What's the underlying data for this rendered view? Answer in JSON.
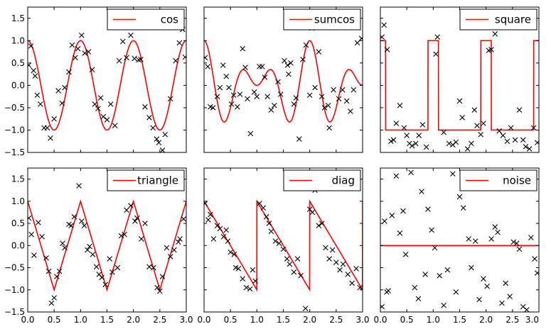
{
  "chart_data": [
    {
      "type": "line+scatter",
      "legend": "cos",
      "line_color": "#ff0000",
      "marker": "x",
      "xlim": [
        0.0,
        3.0
      ],
      "ylim": [
        -1.5,
        1.75
      ],
      "yticks": [
        "−1.5",
        "−1.0",
        "−0.5",
        "0.0",
        "0.5",
        "1.0",
        "1.5"
      ],
      "xticks": [],
      "curve": {
        "kind": "cos",
        "freq": 2
      },
      "points": [
        [
          0.02,
          0.45
        ],
        [
          0.06,
          0.88
        ],
        [
          0.11,
          0.33
        ],
        [
          0.14,
          0.21
        ],
        [
          0.18,
          -0.22
        ],
        [
          0.24,
          -0.42
        ],
        [
          0.31,
          -0.95
        ],
        [
          0.37,
          -0.95
        ],
        [
          0.43,
          -1.18
        ],
        [
          0.5,
          -0.75
        ],
        [
          0.58,
          -0.12
        ],
        [
          0.65,
          -0.4
        ],
        [
          0.7,
          -0.05
        ],
        [
          0.78,
          0.3
        ],
        [
          0.84,
          0.9
        ],
        [
          0.9,
          0.62
        ],
        [
          0.95,
          0.82
        ],
        [
          1.02,
          1.12
        ],
        [
          1.08,
          0.72
        ],
        [
          1.15,
          0.75
        ],
        [
          1.22,
          0.35
        ],
        [
          1.27,
          -0.42
        ],
        [
          1.33,
          -0.52
        ],
        [
          1.38,
          -0.28
        ],
        [
          1.43,
          -0.7
        ],
        [
          1.5,
          -0.77
        ],
        [
          1.57,
          -0.42
        ],
        [
          1.65,
          -0.9
        ],
        [
          1.73,
          0.55
        ],
        [
          1.8,
          0.98
        ],
        [
          1.87,
          0.62
        ],
        [
          1.95,
          1.12
        ],
        [
          2.02,
          0.6
        ],
        [
          2.1,
          0.57
        ],
        [
          2.14,
          0.58
        ],
        [
          2.22,
          -0.48
        ],
        [
          2.3,
          -0.72
        ],
        [
          2.37,
          -0.95
        ],
        [
          2.44,
          -1.2
        ],
        [
          2.48,
          -1.28
        ],
        [
          2.55,
          -1.45
        ],
        [
          2.6,
          -1.1
        ],
        [
          2.7,
          -0.3
        ],
        [
          2.8,
          0.55
        ],
        [
          2.87,
          0.95
        ],
        [
          2.93,
          1.25
        ],
        [
          2.98,
          0.63
        ]
      ]
    },
    {
      "type": "line+scatter",
      "legend": "sumcos",
      "line_color": "#ff0000",
      "marker": "x",
      "xlim": [
        0.0,
        3.0
      ],
      "ylim": [
        -1.5,
        1.75
      ],
      "yticks": [],
      "xticks": [],
      "curve": {
        "kind": "sumcos"
      },
      "points": [
        [
          0.02,
          0.62
        ],
        [
          0.07,
          0.42
        ],
        [
          0.12,
          -0.48
        ],
        [
          0.17,
          -0.5
        ],
        [
          0.25,
          -0.25
        ],
        [
          0.3,
          -0.05
        ],
        [
          0.36,
          0.45
        ],
        [
          0.42,
          0.2
        ],
        [
          0.47,
          -0.05
        ],
        [
          0.52,
          -0.42
        ],
        [
          0.56,
          -0.22
        ],
        [
          0.63,
          -0.48
        ],
        [
          0.68,
          -0.2
        ],
        [
          0.73,
          0.82
        ],
        [
          0.78,
          0.4
        ],
        [
          0.82,
          -0.3
        ],
        [
          0.88,
          -1.08
        ],
        [
          0.95,
          -0.15
        ],
        [
          1.0,
          -0.25
        ],
        [
          1.05,
          0.42
        ],
        [
          1.1,
          0.42
        ],
        [
          1.15,
          0.18
        ],
        [
          1.2,
          -0.25
        ],
        [
          1.27,
          -0.55
        ],
        [
          1.33,
          -0.45
        ],
        [
          1.4,
          0.08
        ],
        [
          1.45,
          -0.2
        ],
        [
          1.52,
          0.55
        ],
        [
          1.58,
          0.45
        ],
        [
          1.6,
          0.25
        ],
        [
          1.64,
          0.5
        ],
        [
          1.7,
          -0.42
        ],
        [
          1.74,
          -0.28
        ],
        [
          1.8,
          -1.2
        ],
        [
          1.87,
          0.58
        ],
        [
          1.93,
          0.9
        ],
        [
          2.0,
          -0.22
        ],
        [
          2.04,
          1.28
        ],
        [
          2.1,
          -0.05
        ],
        [
          2.17,
          0.75
        ],
        [
          2.23,
          -0.25
        ],
        [
          2.28,
          -0.5
        ],
        [
          2.35,
          -0.45
        ],
        [
          2.37,
          -0.95
        ],
        [
          2.45,
          -0.1
        ],
        [
          2.55,
          -0.3
        ],
        [
          2.62,
          -0.1
        ],
        [
          2.7,
          -0.35
        ],
        [
          2.77,
          -0.58
        ],
        [
          2.83,
          -0.1
        ],
        [
          2.9,
          0.95
        ],
        [
          2.98,
          1.05
        ]
      ]
    },
    {
      "type": "line+scatter",
      "legend": "square",
      "line_color": "#ff0000",
      "marker": "x",
      "xlim": [
        0.0,
        3.0
      ],
      "ylim": [
        -1.5,
        1.75
      ],
      "yticks": [],
      "xticks": [],
      "curve": {
        "kind": "square"
      },
      "points": [
        [
          0.03,
          1.08
        ],
        [
          0.07,
          1.35
        ],
        [
          0.13,
          0.8
        ],
        [
          0.2,
          -1.25
        ],
        [
          0.25,
          -1.22
        ],
        [
          0.3,
          -0.85
        ],
        [
          0.37,
          -0.45
        ],
        [
          0.45,
          -0.95
        ],
        [
          0.5,
          -1.12
        ],
        [
          0.55,
          -1.3
        ],
        [
          0.6,
          -1.35
        ],
        [
          0.67,
          -1.3
        ],
        [
          0.73,
          -1.12
        ],
        [
          0.8,
          -0.88
        ],
        [
          0.87,
          -1.38
        ],
        [
          1.08,
          1.08
        ],
        [
          1.05,
          0.7
        ],
        [
          1.2,
          -1.05
        ],
        [
          1.3,
          -1.3
        ],
        [
          1.37,
          -1.33
        ],
        [
          1.43,
          -1.27
        ],
        [
          1.5,
          -0.35
        ],
        [
          1.55,
          -0.72
        ],
        [
          1.65,
          -1.42
        ],
        [
          1.72,
          -1.3
        ],
        [
          1.78,
          -0.55
        ],
        [
          1.83,
          -0.9
        ],
        [
          1.9,
          -1.1
        ],
        [
          1.95,
          -0.85
        ],
        [
          2.05,
          0.78
        ],
        [
          2.1,
          0.8
        ],
        [
          2.17,
          1.15
        ],
        [
          2.25,
          -1.02
        ],
        [
          2.32,
          -1.12
        ],
        [
          2.4,
          -1.25
        ],
        [
          2.47,
          -0.95
        ],
        [
          2.55,
          -1.22
        ],
        [
          2.63,
          -0.55
        ],
        [
          2.7,
          -1.22
        ],
        [
          2.75,
          -1.37
        ],
        [
          2.82,
          -1.42
        ],
        [
          2.9,
          -0.95
        ],
        [
          2.97,
          -1.28
        ]
      ]
    },
    {
      "type": "line+scatter",
      "legend": "triangle",
      "line_color": "#ff0000",
      "marker": "x",
      "xlim": [
        0.0,
        3.0
      ],
      "ylim": [
        -1.5,
        1.75
      ],
      "yticks": [
        "−1.5",
        "−1.0",
        "−0.5",
        "0.0",
        "0.5",
        "1.0",
        "1.5"
      ],
      "xticks": [
        "0.0",
        "0.5",
        "1.0",
        "1.5",
        "2.0",
        "2.5",
        "3.0"
      ],
      "curve": {
        "kind": "triangle"
      },
      "points": [
        [
          0.02,
          0.62
        ],
        [
          0.07,
          0.25
        ],
        [
          0.12,
          -0.22
        ],
        [
          0.2,
          0.52
        ],
        [
          0.27,
          0.2
        ],
        [
          0.35,
          -0.28
        ],
        [
          0.4,
          -0.58
        ],
        [
          0.45,
          -1.3
        ],
        [
          0.5,
          -1.18
        ],
        [
          0.55,
          -0.7
        ],
        [
          0.6,
          -0.58
        ],
        [
          0.66,
          0.05
        ],
        [
          0.7,
          -0.05
        ],
        [
          0.78,
          0.48
        ],
        [
          0.82,
          0.45
        ],
        [
          0.88,
          0.65
        ],
        [
          0.97,
          1.35
        ],
        [
          1.02,
          0.55
        ],
        [
          1.07,
          0.45
        ],
        [
          1.13,
          -0.1
        ],
        [
          1.17,
          -0.02
        ],
        [
          1.23,
          -0.2
        ],
        [
          1.3,
          -0.48
        ],
        [
          1.35,
          -0.65
        ],
        [
          1.4,
          -0.72
        ],
        [
          1.47,
          -0.88
        ],
        [
          1.55,
          -0.3
        ],
        [
          1.6,
          -0.6
        ],
        [
          1.7,
          -0.5
        ],
        [
          1.77,
          0.22
        ],
        [
          1.83,
          0.25
        ],
        [
          1.87,
          0.8
        ],
        [
          1.95,
          0.9
        ],
        [
          2.03,
          0.55
        ],
        [
          2.07,
          0.62
        ],
        [
          2.15,
          0.15
        ],
        [
          2.22,
          0.5
        ],
        [
          2.3,
          -0.48
        ],
        [
          2.38,
          -0.5
        ],
        [
          2.45,
          -0.95
        ],
        [
          2.5,
          -1.03
        ],
        [
          2.55,
          -0.7
        ],
        [
          2.63,
          -0.05
        ],
        [
          2.7,
          -0.25
        ],
        [
          2.77,
          -0.1
        ],
        [
          2.85,
          0.08
        ],
        [
          2.88,
          0.15
        ],
        [
          2.95,
          0.6
        ]
      ]
    },
    {
      "type": "line+scatter",
      "legend": "diag",
      "line_color": "#ff0000",
      "marker": "x",
      "xlim": [
        0.0,
        3.0
      ],
      "ylim": [
        -1.5,
        1.75
      ],
      "yticks": [],
      "xticks": [
        "0.0",
        "0.5",
        "1.0",
        "1.5",
        "2.0",
        "2.5",
        "3.0"
      ],
      "curve": {
        "kind": "diag"
      },
      "points": [
        [
          0.02,
          0.95
        ],
        [
          0.08,
          0.58
        ],
        [
          0.12,
          0.7
        ],
        [
          0.18,
          0.15
        ],
        [
          0.25,
          0.45
        ],
        [
          0.3,
          0.38
        ],
        [
          0.37,
          0.2
        ],
        [
          0.42,
          0.35
        ],
        [
          0.45,
          0.1
        ],
        [
          0.5,
          -0.15
        ],
        [
          0.57,
          -0.2
        ],
        [
          0.6,
          -0.5
        ],
        [
          0.65,
          -0.52
        ],
        [
          0.73,
          -0.75
        ],
        [
          0.8,
          -0.95
        ],
        [
          0.87,
          -0.98
        ],
        [
          0.92,
          -0.55
        ],
        [
          0.97,
          -0.8
        ],
        [
          1.05,
          0.95
        ],
        [
          1.12,
          0.85
        ],
        [
          1.18,
          0.65
        ],
        [
          1.23,
          0.5
        ],
        [
          1.27,
          0.32
        ],
        [
          1.35,
          0.1
        ],
        [
          1.42,
          0.05
        ],
        [
          1.5,
          -0.08
        ],
        [
          1.57,
          -0.3
        ],
        [
          1.62,
          -0.42
        ],
        [
          1.7,
          -0.6
        ],
        [
          1.77,
          -0.3
        ],
        [
          1.83,
          -0.68
        ],
        [
          1.92,
          -1.42
        ],
        [
          2.0,
          0.82
        ],
        [
          2.05,
          0.75
        ],
        [
          2.1,
          1.25
        ],
        [
          2.17,
          0.45
        ],
        [
          2.23,
          0.5
        ],
        [
          2.3,
          -0.05
        ],
        [
          2.37,
          -0.3
        ],
        [
          2.43,
          -0.1
        ],
        [
          2.5,
          -0.38
        ],
        [
          2.57,
          -0.55
        ],
        [
          2.63,
          -0.42
        ],
        [
          2.72,
          -0.65
        ],
        [
          2.8,
          -0.85
        ],
        [
          2.88,
          -0.52
        ],
        [
          2.95,
          -0.95
        ]
      ]
    },
    {
      "type": "line+scatter",
      "legend": "noise",
      "line_color": "#ff0000",
      "marker": "x",
      "xlim": [
        0.0,
        3.0
      ],
      "ylim": [
        -1.5,
        1.75
      ],
      "yticks": [],
      "xticks": [
        "0.0",
        "0.5",
        "1.0",
        "1.5",
        "2.0",
        "2.5",
        "3.0"
      ],
      "curve": {
        "kind": "zero"
      },
      "points": [
        [
          0.03,
          -1.38
        ],
        [
          0.08,
          0.55
        ],
        [
          0.12,
          -1.05
        ],
        [
          0.15,
          -1.02
        ],
        [
          0.22,
          0.68
        ],
        [
          0.3,
          1.57
        ],
        [
          0.37,
          0.28
        ],
        [
          0.43,
          0.78
        ],
        [
          0.48,
          -0.2
        ],
        [
          0.58,
          1.65
        ],
        [
          0.65,
          -0.95
        ],
        [
          0.72,
          -1.2
        ],
        [
          0.78,
          1.22
        ],
        [
          0.85,
          -0.65
        ],
        [
          0.9,
          0.82
        ],
        [
          0.97,
          0.35
        ],
        [
          1.03,
          -0.05
        ],
        [
          1.12,
          -0.68
        ],
        [
          1.2,
          -1.35
        ],
        [
          1.27,
          -0.55
        ],
        [
          1.37,
          1.62
        ],
        [
          1.43,
          -1.05
        ],
        [
          1.5,
          1.1
        ],
        [
          1.57,
          0.85
        ],
        [
          1.67,
          0.15
        ],
        [
          1.72,
          -0.5
        ],
        [
          1.8,
          0.1
        ],
        [
          1.87,
          -1.22
        ],
        [
          1.95,
          -0.75
        ],
        [
          2.02,
          -0.92
        ],
        [
          2.1,
          0.15
        ],
        [
          2.17,
          0.42
        ],
        [
          2.22,
          0.3
        ],
        [
          2.3,
          -1.3
        ],
        [
          2.37,
          -0.85
        ],
        [
          2.45,
          -1.15
        ],
        [
          2.52,
          0.08
        ],
        [
          2.58,
          0.05
        ],
        [
          2.63,
          -0.08
        ],
        [
          2.7,
          -1.38
        ],
        [
          2.77,
          -1.45
        ],
        [
          2.85,
          0.18
        ],
        [
          2.92,
          -0.3
        ],
        [
          2.97,
          -0.62
        ]
      ]
    }
  ]
}
